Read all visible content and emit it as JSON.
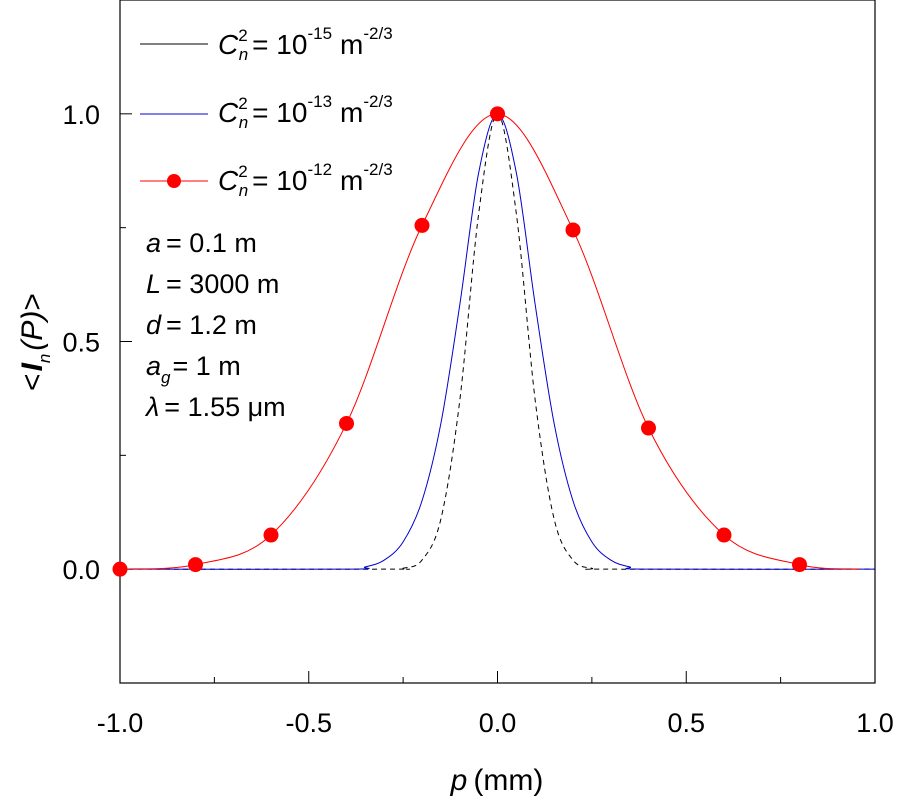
{
  "chart_data": {
    "type": "line",
    "xlabel": {
      "var": "p",
      "unit": "(mm)"
    },
    "ylabel": {
      "open": "<",
      "var": "I",
      "sub": "n",
      "arg": "(P)",
      "close": ">"
    },
    "xlim": [
      -1.0,
      1.0
    ],
    "ylim": [
      -0.25,
      1.25
    ],
    "x_ticks": [
      -1.0,
      -0.5,
      0.0,
      0.5,
      1.0
    ],
    "x_tick_labels": [
      "-1.0",
      "-0.5",
      "0.0",
      "0.5",
      "1.0"
    ],
    "x_minor_ticks": [
      -0.75,
      -0.25,
      0.25,
      0.75
    ],
    "y_ticks": [
      0.0,
      0.5,
      1.0
    ],
    "y_tick_labels": [
      "0.0",
      "0.5",
      "1.0"
    ],
    "y_minor_ticks": [
      -0.25,
      0.25,
      0.75,
      1.25
    ],
    "series": [
      {
        "name": "Cn2 = 1e-15 m^-2/3",
        "color": "#000000",
        "style": "dashed",
        "x": [
          -1.0,
          -0.3,
          -0.25,
          -0.2,
          -0.15,
          -0.1,
          -0.05,
          0.0,
          0.05,
          0.1,
          0.15,
          0.2,
          0.25,
          0.3,
          1.0
        ],
        "y": [
          0.0,
          0.0,
          0.002,
          0.02,
          0.11,
          0.37,
          0.78,
          1.0,
          0.78,
          0.37,
          0.11,
          0.02,
          0.002,
          0.0,
          0.0
        ]
      },
      {
        "name": "Cn2 = 1e-13 m^-2/3",
        "color": "#0000cc",
        "style": "solid",
        "x": [
          -1.0,
          -0.4,
          -0.35,
          -0.3,
          -0.25,
          -0.2,
          -0.15,
          -0.1,
          -0.05,
          0.0,
          0.05,
          0.1,
          0.15,
          0.2,
          0.25,
          0.3,
          0.35,
          0.4,
          1.0
        ],
        "y": [
          0.0,
          0.0,
          0.005,
          0.02,
          0.06,
          0.15,
          0.32,
          0.58,
          0.87,
          1.0,
          0.87,
          0.58,
          0.32,
          0.15,
          0.06,
          0.02,
          0.005,
          0.0,
          0.0
        ]
      },
      {
        "name": "Cn2 = 1e-12 m^-2/3",
        "color": "#ff0000",
        "marker_color": "#ff0000",
        "style": "solid",
        "markers": true,
        "x": [
          -1.0,
          -0.8,
          -0.6,
          -0.4,
          -0.2,
          0.0,
          0.2,
          0.4,
          0.6,
          0.8
        ],
        "y": [
          0.0,
          0.01,
          0.075,
          0.32,
          0.755,
          1.0,
          0.745,
          0.31,
          0.075,
          0.01
        ]
      }
    ],
    "legend": {
      "position": "top-left",
      "entries": [
        {
          "sym": "C",
          "sup": "2",
          "sub": "n",
          "eq": "= 10",
          "exp": "-15",
          "unit": "m",
          "unit_exp": "-2/3"
        },
        {
          "sym": "C",
          "sup": "2",
          "sub": "n",
          "eq": "= 10",
          "exp": "-13",
          "unit": "m",
          "unit_exp": "-2/3"
        },
        {
          "sym": "C",
          "sup": "2",
          "sub": "n",
          "eq": "= 10",
          "exp": "-12",
          "unit": "m",
          "unit_exp": "-2/3"
        }
      ]
    },
    "annotations": {
      "params": [
        {
          "var": "a",
          "sub": "",
          "rest": "= 0.1 m"
        },
        {
          "var": "L",
          "sub": "",
          "rest": "= 3000 m"
        },
        {
          "var": "d",
          "sub": "",
          "rest": "= 1.2 m"
        },
        {
          "var": "a",
          "sub": "g",
          "rest": "= 1 m"
        },
        {
          "var": "λ",
          "sub": "",
          "rest": "= 1.55 μm"
        }
      ]
    }
  }
}
